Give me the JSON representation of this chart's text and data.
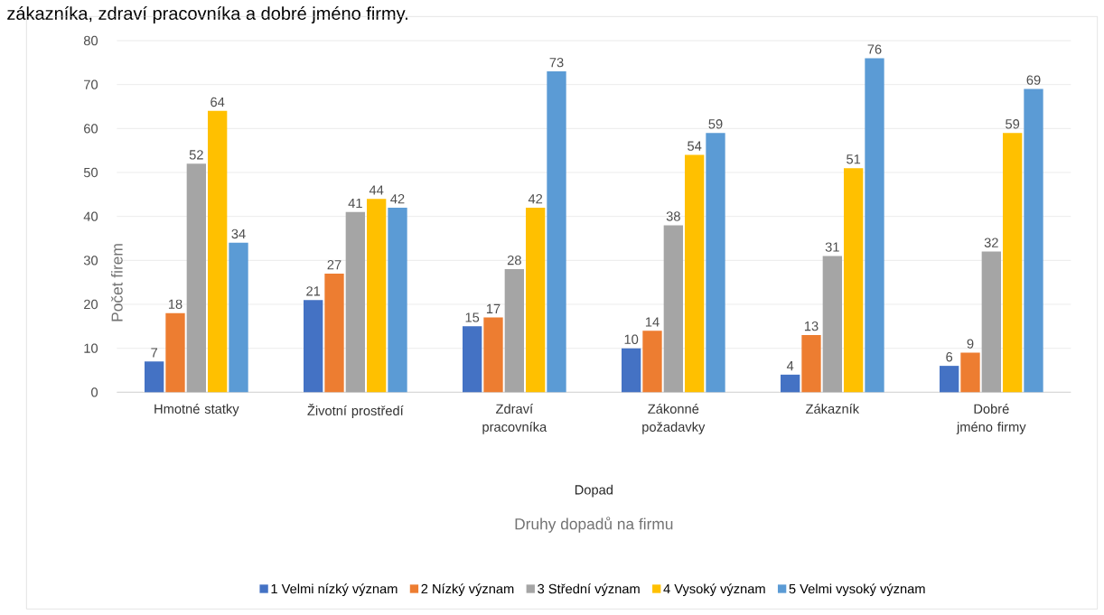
{
  "chart_data": {
    "type": "bar",
    "xlabel": "Dopad",
    "ylabel": "Počet firem",
    "annotations": [
      "zákazníka, zdraví pracovníka a dobré jméno firmy.",
      "Druhy dopadů na firmu"
    ],
    "categories": [
      "Hmotné statky",
      "Životní prostředí",
      "Zdraví pracovníka",
      "Zákonné požadavky",
      "Zákazník",
      "Dobré jméno firmy"
    ],
    "series": [
      {
        "name": "1  Velmi nízký význam",
        "color": "#4472c4",
        "values": [
          7,
          21,
          15,
          10,
          4,
          6
        ]
      },
      {
        "name": "2 Nízký význam",
        "color": "#ed7d31",
        "values": [
          18,
          27,
          17,
          14,
          13,
          9
        ]
      },
      {
        "name": "3 Střední význam",
        "color": "#a5a5a5",
        "values": [
          52,
          41,
          28,
          38,
          31,
          32
        ]
      },
      {
        "name": "4 Vysoký význam",
        "color": "#ffc000",
        "values": [
          64,
          44,
          42,
          54,
          51,
          59
        ]
      },
      {
        "name": "5 Velmi vysoký význam",
        "color": "#5b9bd5",
        "values": [
          34,
          42,
          73,
          59,
          76,
          69
        ]
      }
    ],
    "ylim": [
      0,
      80
    ],
    "yticks": [
      0,
      10,
      20,
      30,
      40,
      50,
      60,
      70,
      80
    ],
    "grid": "y",
    "legend": "bottom",
    "data_labels": true
  }
}
